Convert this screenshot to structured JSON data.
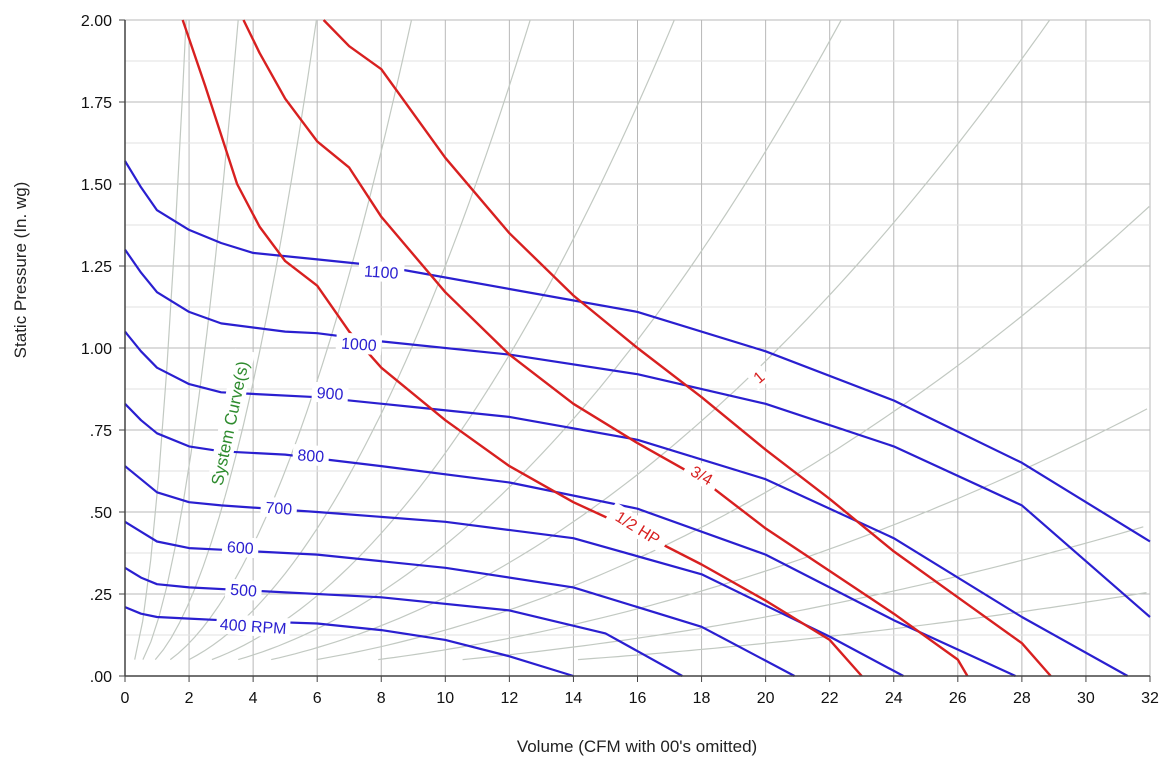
{
  "chart_data": {
    "type": "line",
    "xlabel": "Volume (CFM with 00's omitted)",
    "ylabel": "Static Pressure (In. wg)",
    "xlim": [
      0,
      32
    ],
    "ylim": [
      0,
      2
    ],
    "grid": true,
    "x_ticks": [
      "0",
      "2",
      "4",
      "6",
      "8",
      "10",
      "12",
      "14",
      "16",
      "18",
      "20",
      "22",
      "24",
      "26",
      "28",
      "30",
      "32"
    ],
    "y_ticks": [
      {
        "value": 0,
        "label": ".00"
      },
      {
        "value": 0.25,
        "label": ".25"
      },
      {
        "value": 0.5,
        "label": ".50"
      },
      {
        "value": 0.75,
        "label": ".75"
      },
      {
        "value": 1.0,
        "label": "1.00"
      },
      {
        "value": 1.25,
        "label": "1.25"
      },
      {
        "value": 1.5,
        "label": "1.50"
      },
      {
        "value": 1.75,
        "label": "1.75"
      },
      {
        "value": 2.0,
        "label": "2.00"
      }
    ],
    "colors": {
      "rpm": "#2a1fd0",
      "hp": "#d82020",
      "system": "#c2c9c2",
      "grid": "#b8b8b8",
      "system_label": "#2e8b2e"
    },
    "rpm_curves": [
      {
        "label": "400 RPM",
        "label_at": [
          4.0,
          0.15
        ],
        "points": [
          [
            0,
            0.21
          ],
          [
            0.5,
            0.19
          ],
          [
            1,
            0.18
          ],
          [
            2,
            0.175
          ],
          [
            3,
            0.17
          ],
          [
            6,
            0.16
          ],
          [
            8,
            0.14
          ],
          [
            10,
            0.11
          ],
          [
            12,
            0.06
          ],
          [
            14,
            0.0
          ]
        ]
      },
      {
        "label": "500",
        "label_at": [
          3.7,
          0.26
        ],
        "points": [
          [
            0,
            0.33
          ],
          [
            0.5,
            0.3
          ],
          [
            1,
            0.28
          ],
          [
            2,
            0.27
          ],
          [
            4,
            0.26
          ],
          [
            8,
            0.24
          ],
          [
            12,
            0.2
          ],
          [
            15,
            0.13
          ],
          [
            17.4,
            0.0
          ]
        ]
      },
      {
        "label": "600",
        "label_at": [
          3.6,
          0.39
        ],
        "points": [
          [
            0,
            0.47
          ],
          [
            0.5,
            0.44
          ],
          [
            1,
            0.41
          ],
          [
            2,
            0.39
          ],
          [
            3,
            0.385
          ],
          [
            6,
            0.37
          ],
          [
            10,
            0.33
          ],
          [
            14,
            0.27
          ],
          [
            18,
            0.15
          ],
          [
            20.9,
            0.0
          ]
        ]
      },
      {
        "label": "700",
        "label_at": [
          4.8,
          0.51
        ],
        "points": [
          [
            0,
            0.64
          ],
          [
            0.5,
            0.6
          ],
          [
            1,
            0.56
          ],
          [
            2,
            0.53
          ],
          [
            3,
            0.52
          ],
          [
            6,
            0.5
          ],
          [
            10,
            0.47
          ],
          [
            14,
            0.42
          ],
          [
            18,
            0.31
          ],
          [
            22,
            0.12
          ],
          [
            24.3,
            0.0
          ]
        ]
      },
      {
        "label": "800",
        "label_at": [
          5.8,
          0.67
        ],
        "points": [
          [
            0,
            0.83
          ],
          [
            0.5,
            0.78
          ],
          [
            1,
            0.74
          ],
          [
            2,
            0.7
          ],
          [
            3,
            0.685
          ],
          [
            5,
            0.675
          ],
          [
            8,
            0.64
          ],
          [
            12,
            0.59
          ],
          [
            16,
            0.51
          ],
          [
            20,
            0.37
          ],
          [
            24,
            0.17
          ],
          [
            27.8,
            0.0
          ]
        ]
      },
      {
        "label": "900",
        "label_at": [
          6.4,
          0.86
        ],
        "points": [
          [
            0,
            1.05
          ],
          [
            0.5,
            0.99
          ],
          [
            1,
            0.94
          ],
          [
            2,
            0.89
          ],
          [
            3,
            0.865
          ],
          [
            6,
            0.85
          ],
          [
            9,
            0.82
          ],
          [
            12,
            0.79
          ],
          [
            16,
            0.72
          ],
          [
            20,
            0.6
          ],
          [
            24,
            0.42
          ],
          [
            28,
            0.18
          ],
          [
            31.3,
            0.0
          ]
        ]
      },
      {
        "label": "1000",
        "label_at": [
          7.3,
          1.01
        ],
        "points": [
          [
            0,
            1.3
          ],
          [
            0.5,
            1.23
          ],
          [
            1,
            1.17
          ],
          [
            2,
            1.11
          ],
          [
            3,
            1.075
          ],
          [
            5,
            1.05
          ],
          [
            6,
            1.045
          ],
          [
            8,
            1.02
          ],
          [
            12,
            0.98
          ],
          [
            16,
            0.92
          ],
          [
            20,
            0.83
          ],
          [
            24,
            0.7
          ],
          [
            28,
            0.52
          ],
          [
            32,
            0.18
          ]
        ]
      },
      {
        "label": "1100",
        "label_at": [
          8.0,
          1.23
        ],
        "points": [
          [
            0,
            1.57
          ],
          [
            0.5,
            1.49
          ],
          [
            1,
            1.42
          ],
          [
            2,
            1.36
          ],
          [
            3,
            1.32
          ],
          [
            4,
            1.29
          ],
          [
            6,
            1.27
          ],
          [
            8,
            1.25
          ],
          [
            12,
            1.18
          ],
          [
            16,
            1.11
          ],
          [
            20,
            0.99
          ],
          [
            24,
            0.84
          ],
          [
            28,
            0.65
          ],
          [
            32,
            0.41
          ]
        ]
      }
    ],
    "hp_curves": [
      {
        "label": "1/2 HP",
        "label_at": [
          16.0,
          0.45
        ],
        "points": [
          [
            1.8,
            2.0
          ],
          [
            2.5,
            1.8
          ],
          [
            3.5,
            1.5
          ],
          [
            4.2,
            1.37
          ],
          [
            5,
            1.265
          ],
          [
            6,
            1.19
          ],
          [
            7,
            1.05
          ],
          [
            8,
            0.94
          ],
          [
            10,
            0.78
          ],
          [
            12,
            0.64
          ],
          [
            14,
            0.53
          ],
          [
            16,
            0.44
          ],
          [
            18,
            0.34
          ],
          [
            20,
            0.23
          ],
          [
            22,
            0.11
          ],
          [
            23,
            0.0
          ]
        ]
      },
      {
        "label": "3/4",
        "label_at": [
          18.0,
          0.61
        ],
        "points": [
          [
            3.7,
            2.0
          ],
          [
            4.2,
            1.9
          ],
          [
            5,
            1.76
          ],
          [
            6,
            1.63
          ],
          [
            7,
            1.55
          ],
          [
            8,
            1.4
          ],
          [
            10,
            1.17
          ],
          [
            12,
            0.98
          ],
          [
            14,
            0.83
          ],
          [
            16,
            0.71
          ],
          [
            18,
            0.6
          ],
          [
            20,
            0.45
          ],
          [
            22,
            0.32
          ],
          [
            24,
            0.19
          ],
          [
            26,
            0.05
          ],
          [
            26.3,
            0.0
          ]
        ]
      },
      {
        "label": "1",
        "label_at": [
          19.8,
          0.91
        ],
        "points": [
          [
            6.2,
            2.0
          ],
          [
            7,
            1.92
          ],
          [
            8,
            1.85
          ],
          [
            10,
            1.58
          ],
          [
            12,
            1.35
          ],
          [
            14,
            1.16
          ],
          [
            16,
            1.0
          ],
          [
            18,
            0.85
          ],
          [
            20,
            0.69
          ],
          [
            22,
            0.54
          ],
          [
            24,
            0.38
          ],
          [
            26,
            0.24
          ],
          [
            28,
            0.1
          ],
          [
            28.9,
            0.0
          ]
        ]
      }
    ],
    "system_curves": [
      {
        "k": 0.55
      },
      {
        "k": 0.16
      },
      {
        "k": 0.056
      },
      {
        "k": 0.025
      },
      {
        "k": 0.0125
      },
      {
        "k": 0.0068
      },
      {
        "k": 0.004
      },
      {
        "k": 0.0024
      },
      {
        "k": 0.0014
      },
      {
        "k": 0.0008
      },
      {
        "k": 0.00045
      },
      {
        "k": 0.00025
      }
    ],
    "system_label": "System Curve(s)",
    "system_label_at": [
      3.3,
      0.77
    ]
  }
}
